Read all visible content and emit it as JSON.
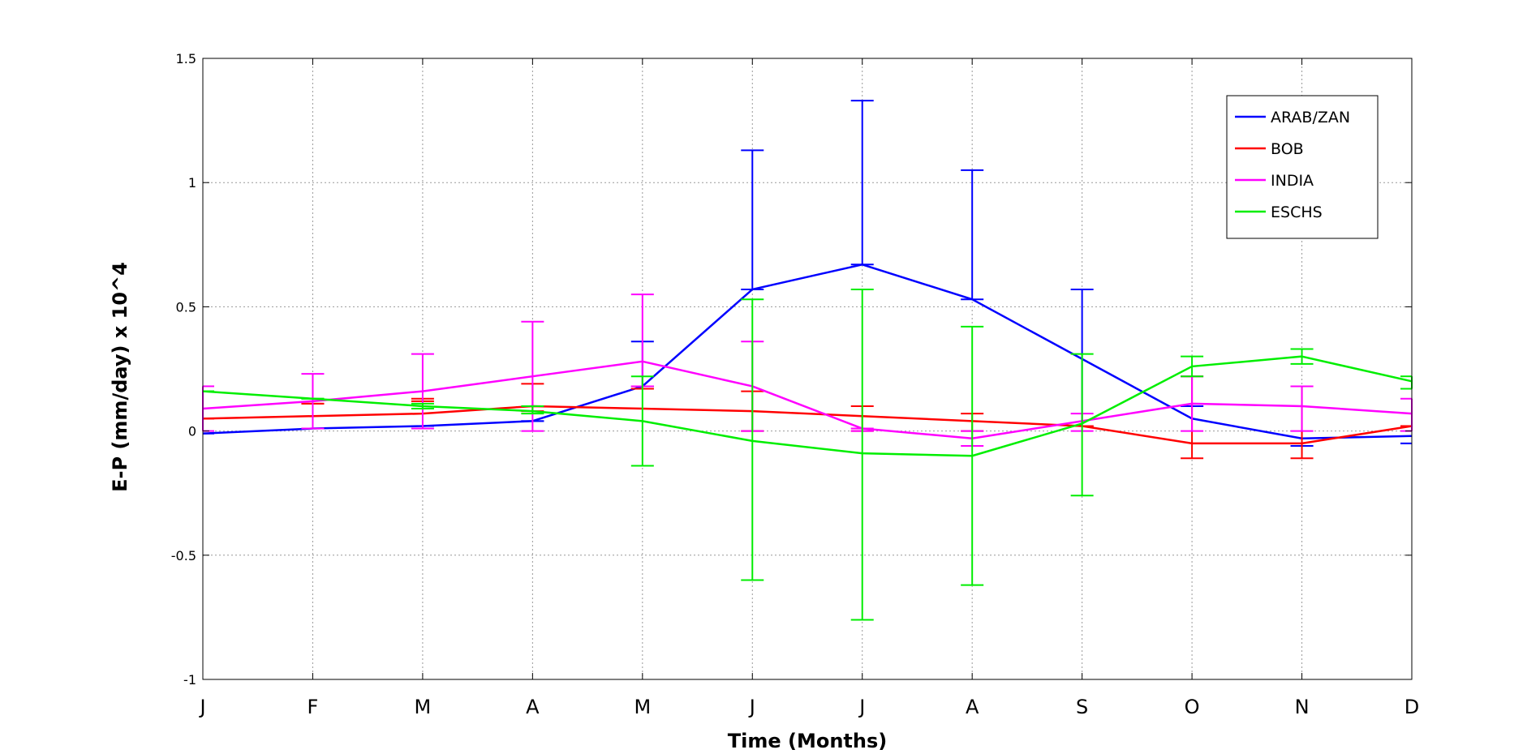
{
  "chart_data": {
    "type": "line",
    "title": "",
    "xlabel": "Time (Months)",
    "ylabel": "E-P (mm/day) x 10^4",
    "categories": [
      "J",
      "F",
      "M",
      "A",
      "M",
      "J",
      "J",
      "A",
      "S",
      "O",
      "N",
      "D"
    ],
    "ylim": [
      -1,
      1.5
    ],
    "yticks": [
      -1,
      -0.5,
      0,
      0.5,
      1,
      1.5
    ],
    "ytick_labels": [
      "-1",
      "-0.5",
      "0",
      "0.5",
      "1",
      "1.5"
    ],
    "grid": true,
    "legend_position": "top-right",
    "series": [
      {
        "name": "ARAB/ZAN",
        "color": "#0000ff",
        "values": [
          -0.01,
          0.01,
          0.02,
          0.04,
          0.18,
          0.57,
          0.67,
          0.53,
          0.29,
          0.05,
          -0.03,
          -0.02
        ],
        "err_low": [
          -0.01,
          0.01,
          0.02,
          0.04,
          0.18,
          0.57,
          0.67,
          0.53,
          0.02,
          0.1,
          -0.06,
          -0.05
        ],
        "err_high": [
          -0.01,
          0.01,
          0.02,
          0.04,
          0.36,
          1.13,
          1.33,
          1.05,
          0.57,
          0.1,
          -0.06,
          -0.05
        ]
      },
      {
        "name": "BOB",
        "color": "#ff0000",
        "values": [
          0.05,
          0.06,
          0.07,
          0.1,
          0.09,
          0.08,
          0.06,
          0.04,
          0.02,
          -0.05,
          -0.05,
          0.02
        ],
        "err_low": [
          0.05,
          0.11,
          0.12,
          0.08,
          0.17,
          0.0,
          0.0,
          0.0,
          0.02,
          -0.11,
          -0.11,
          0.02
        ],
        "err_high": [
          0.05,
          0.11,
          0.13,
          0.19,
          0.17,
          0.16,
          0.1,
          0.07,
          0.02,
          0.22,
          0.18,
          0.02
        ]
      },
      {
        "name": "INDIA",
        "color": "#ff00ff",
        "values": [
          0.09,
          0.12,
          0.16,
          0.22,
          0.28,
          0.18,
          0.01,
          -0.03,
          0.04,
          0.11,
          0.1,
          0.07
        ],
        "err_low": [
          0.0,
          0.01,
          0.01,
          0.0,
          0.18,
          0.0,
          0.0,
          -0.06,
          0.0,
          0.0,
          0.0,
          0.0
        ],
        "err_high": [
          0.18,
          0.23,
          0.31,
          0.44,
          0.55,
          0.36,
          0.01,
          0.0,
          0.07,
          0.22,
          0.18,
          0.13
        ]
      },
      {
        "name": "ESCHS",
        "color": "#00ee00",
        "values": [
          0.16,
          0.13,
          0.1,
          0.08,
          0.04,
          -0.04,
          -0.09,
          -0.1,
          0.03,
          0.26,
          0.3,
          0.2
        ],
        "err_low": [
          0.16,
          0.13,
          0.09,
          0.07,
          -0.14,
          -0.6,
          -0.76,
          -0.62,
          -0.26,
          0.22,
          0.27,
          0.17
        ],
        "err_high": [
          0.16,
          0.13,
          0.11,
          0.1,
          0.22,
          0.53,
          0.57,
          0.42,
          0.31,
          0.3,
          0.33,
          0.22
        ]
      }
    ]
  }
}
